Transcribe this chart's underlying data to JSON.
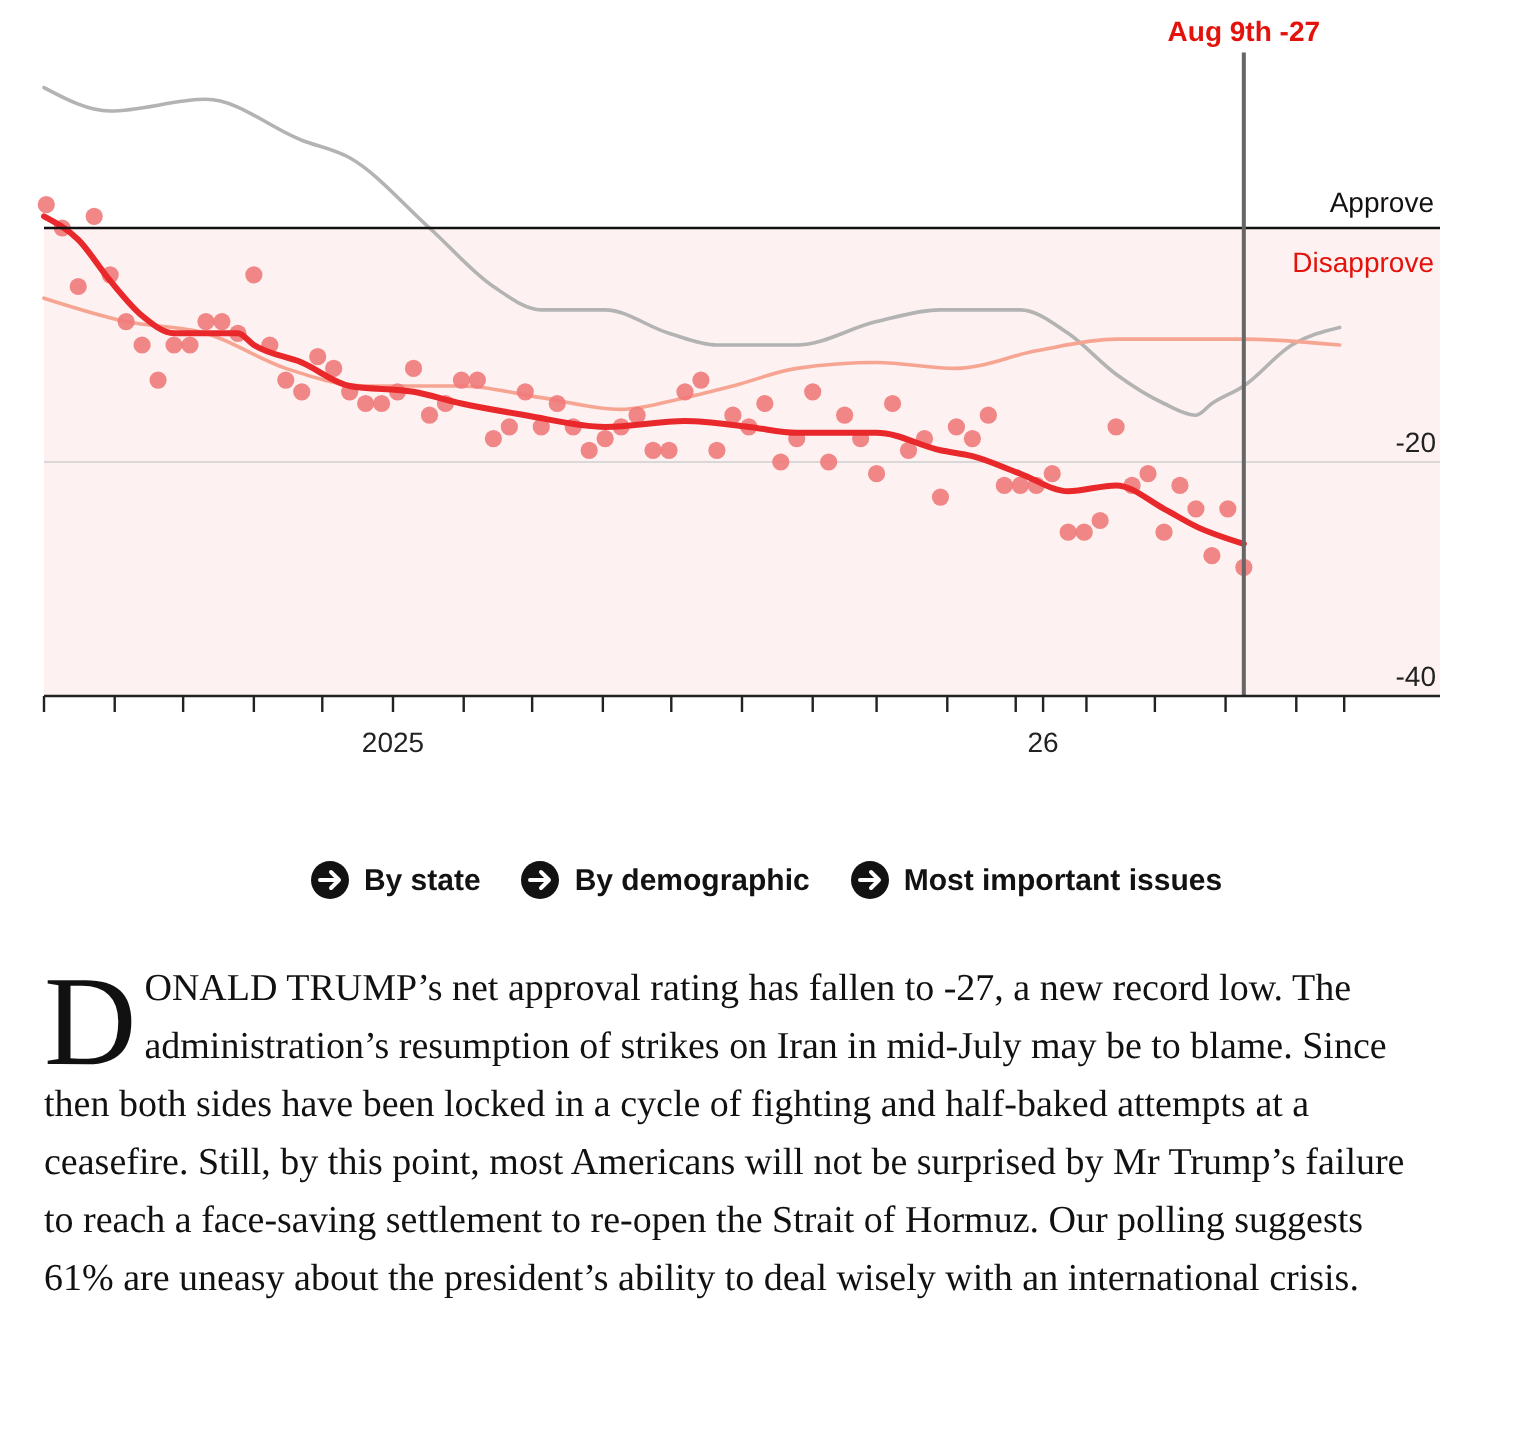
{
  "chart_data": {
    "type": "line",
    "xlim": [
      "2025-03-01",
      "2026-11-03"
    ],
    "ylim": [
      -40,
      15
    ],
    "xticks": [
      {
        "value": "2025-03-01",
        "label": null
      },
      {
        "value": "2025-04-01",
        "label": null
      },
      {
        "value": "2025-05-01",
        "label": null
      },
      {
        "value": "2025-06-01",
        "label": null
      },
      {
        "value": "2025-07-01",
        "label": null
      },
      {
        "value": "2025-08-01",
        "label": "2025"
      },
      {
        "value": "2025-09-01",
        "label": null
      },
      {
        "value": "2025-10-01",
        "label": null
      },
      {
        "value": "2025-11-01",
        "label": null
      },
      {
        "value": "2025-12-01",
        "label": null
      },
      {
        "value": "2026-01-01",
        "label": null
      },
      {
        "value": "2026-02-01",
        "label": null
      },
      {
        "value": "2026-03-01",
        "label": null
      },
      {
        "value": "2026-04-01",
        "label": null
      },
      {
        "value": "2026-05-01",
        "label": null
      },
      {
        "value": "2026-05-13",
        "label": "26"
      },
      {
        "value": "2026-06-01",
        "label": null
      },
      {
        "value": "2026-07-01",
        "label": null
      },
      {
        "value": "2026-08-01",
        "label": null
      },
      {
        "value": "2026-09-01",
        "label": null
      },
      {
        "value": "2026-09-22",
        "label": null
      }
    ],
    "yticks": [
      -20,
      -40
    ],
    "grid": "y",
    "bands": [
      {
        "axis": "y",
        "from": -40,
        "to": 0,
        "label": "Disapprove",
        "color": "#fdf1f1"
      }
    ],
    "ref_lines": [
      {
        "axis": "y",
        "value": 0,
        "label": "Approve",
        "color": "#111111"
      },
      {
        "axis": "x",
        "value": "2026-08-09",
        "label": "Aug 9th -27",
        "color": "#666666"
      }
    ],
    "series": [
      {
        "type": "line",
        "color": "#b3b3b3",
        "x": [
          "2025-03-01",
          "2025-03-30",
          "2025-05-11",
          "2025-06-22",
          "2025-07-13",
          "2025-08-17",
          "2025-09-14",
          "2025-10-05",
          "2025-11-02",
          "2025-11-30",
          "2025-12-21",
          "2026-01-25",
          "2026-03-01",
          "2026-03-29",
          "2026-05-03",
          "2026-05-24",
          "2026-06-14",
          "2026-07-05",
          "2026-07-19",
          "2026-07-26",
          "2026-08-09",
          "2026-08-30",
          "2026-09-20"
        ],
        "values": [
          12,
          10,
          11,
          7.5,
          6,
          0,
          -5,
          -7,
          -7,
          -9,
          -10,
          -10,
          -8,
          -7,
          -7,
          -9,
          -12.5,
          -15,
          -16,
          -15,
          -13.5,
          -10,
          -8.5
        ]
      },
      {
        "type": "line",
        "color": "#f7a593",
        "x": [
          "2025-03-01",
          "2025-04-06",
          "2025-05-11",
          "2025-06-15",
          "2025-07-20",
          "2025-08-31",
          "2025-10-05",
          "2025-11-09",
          "2025-12-07",
          "2025-12-28",
          "2026-01-25",
          "2026-03-01",
          "2026-04-05",
          "2026-05-10",
          "2026-06-14",
          "2026-08-09",
          "2026-09-20"
        ],
        "values": [
          -6,
          -8,
          -9,
          -12,
          -13.5,
          -13.5,
          -14.5,
          -15.5,
          -14.5,
          -13.5,
          -12,
          -11.5,
          -12,
          -10.5,
          -9.5,
          -9.5,
          -10
        ]
      },
      {
        "type": "scatter",
        "color": "#f07a7a",
        "marker": "circle",
        "x": [
          "2025-03-02",
          "2025-03-09",
          "2025-03-16",
          "2025-03-23",
          "2025-03-30",
          "2025-04-06",
          "2025-04-13",
          "2025-04-20",
          "2025-04-27",
          "2025-05-04",
          "2025-05-11",
          "2025-05-18",
          "2025-05-25",
          "2025-06-01",
          "2025-06-08",
          "2025-06-15",
          "2025-06-22",
          "2025-06-29",
          "2025-07-06",
          "2025-07-13",
          "2025-07-20",
          "2025-07-27",
          "2025-08-03",
          "2025-08-10",
          "2025-08-17",
          "2025-08-24",
          "2025-08-31",
          "2025-09-07",
          "2025-09-14",
          "2025-09-21",
          "2025-09-28",
          "2025-10-05",
          "2025-10-12",
          "2025-10-19",
          "2025-10-26",
          "2025-11-02",
          "2025-11-09",
          "2025-11-16",
          "2025-11-23",
          "2025-11-30",
          "2025-12-07",
          "2025-12-14",
          "2025-12-21",
          "2025-12-28",
          "2026-01-04",
          "2026-01-11",
          "2026-01-18",
          "2026-01-25",
          "2026-02-01",
          "2026-02-08",
          "2026-02-15",
          "2026-02-22",
          "2026-03-01",
          "2026-03-08",
          "2026-03-15",
          "2026-03-22",
          "2026-03-29",
          "2026-04-05",
          "2026-04-12",
          "2026-04-19",
          "2026-04-26",
          "2026-05-03",
          "2026-05-10",
          "2026-05-17",
          "2026-05-24",
          "2026-05-31",
          "2026-06-07",
          "2026-06-14",
          "2026-06-21",
          "2026-06-28",
          "2026-07-05",
          "2026-07-12",
          "2026-07-19",
          "2026-07-26",
          "2026-08-02",
          "2026-08-09"
        ],
        "values": [
          2,
          0,
          -5,
          1,
          -4,
          -8,
          -10,
          -13,
          -10,
          -10,
          -8,
          -8,
          -9,
          -4,
          -10,
          -13,
          -14,
          -11,
          -12,
          -14,
          -15,
          -15,
          -14,
          -12,
          -16,
          -15,
          -13,
          -13,
          -18,
          -17,
          -14,
          -17,
          -15,
          -17,
          -19,
          -18,
          -17,
          -16,
          -19,
          -19,
          -14,
          -13,
          -19,
          -16,
          -17,
          -15,
          -20,
          -18,
          -14,
          -20,
          -16,
          -18,
          -21,
          -15,
          -19,
          -18,
          -23,
          -17,
          -18,
          -16,
          -22,
          -22,
          -22,
          -21,
          -26,
          -26,
          -25,
          -17,
          -22,
          -21,
          -26,
          -22,
          -24,
          -28,
          -24,
          -29
        ]
      },
      {
        "type": "line",
        "color": "#e8282b",
        "x": [
          "2025-03-01",
          "2025-03-16",
          "2025-03-30",
          "2025-04-13",
          "2025-04-27",
          "2025-05-25",
          "2025-06-01",
          "2025-06-22",
          "2025-07-13",
          "2025-08-10",
          "2025-08-31",
          "2025-09-28",
          "2025-11-02",
          "2025-12-07",
          "2026-01-04",
          "2026-01-25",
          "2026-03-01",
          "2026-03-29",
          "2026-04-12",
          "2026-05-03",
          "2026-05-24",
          "2026-06-14",
          "2026-07-05",
          "2026-07-19",
          "2026-08-09"
        ],
        "values": [
          1,
          -1,
          -4.5,
          -7.5,
          -9,
          -9,
          -10,
          -11.5,
          -13.5,
          -14,
          -15,
          -16,
          -17,
          -16.5,
          -17,
          -17.5,
          -17.5,
          -19,
          -19.5,
          -21,
          -22.5,
          -22,
          -24,
          -25.5,
          -27
        ]
      }
    ],
    "annotations": [
      "By state",
      "By demographic",
      "Most important issues",
      "DONALD TRUMP’s net approval rating has fallen to -27, a new record low. The administration’s resumption of strikes on Iran in mid-July may be to blame. Since then both sides have been locked in a cycle of fighting and half-baked attempts at a ceasefire. Still, by this point, most Americans will not be surprised by Mr Trump’s failure to reach a face-saving settlement to re-open the Strait of Hormuz. Our polling suggests 61% are uneasy about the president’s ability to deal wisely with an international crisis."
    ]
  }
}
